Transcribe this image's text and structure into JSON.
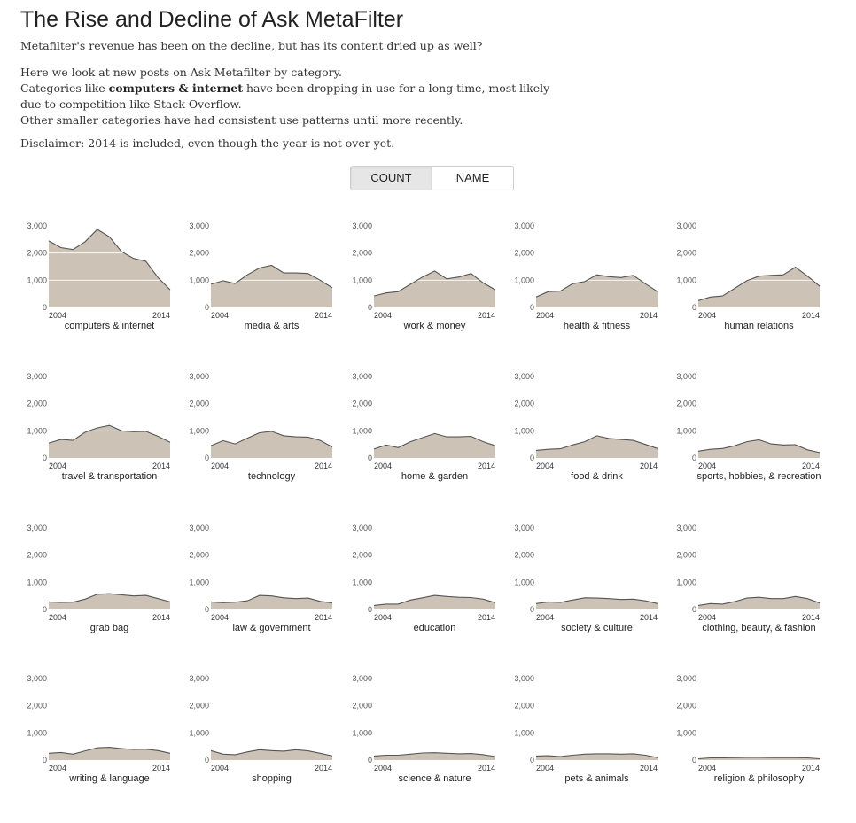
{
  "header": {
    "title": "The Rise and Decline of Ask MetaFilter",
    "subtitle": "Metafilter's revenue has been on the decline, but has its content dried up as well?"
  },
  "intro": {
    "line1": "Here we look at new posts on Ask Metafilter by category.",
    "line2_before": "Categories like ",
    "line2_bold": "computers & internet",
    "line2_after": " have been dropping in use for a long time, most likely",
    "line3": "due to competition like Stack Overflow.",
    "line4": "Other smaller categories have had consistent use patterns until more recently.",
    "disclaimer": "Disclaimer: 2014 is included, even though the year is not over yet."
  },
  "toggle": {
    "count_label": "COUNT",
    "name_label": "NAME",
    "active": "count"
  },
  "colors": {
    "area_fill": "#ccc3b6",
    "line_stroke": "#555555",
    "axis_text": "#555555",
    "gridline": "#ffffff"
  },
  "chart_data": {
    "type": "area",
    "x": [
      2004,
      2005,
      2006,
      2007,
      2008,
      2009,
      2010,
      2011,
      2012,
      2013,
      2014
    ],
    "x_tick_labels": [
      "2004",
      "2014"
    ],
    "ylim": [
      0,
      3000
    ],
    "y_ticks": [
      0,
      1000,
      2000,
      3000
    ],
    "y_tick_labels": [
      "0",
      "1,000",
      "2,000",
      "3,000"
    ],
    "series": [
      {
        "name": "computers & internet",
        "values": [
          2450,
          2200,
          2130,
          2420,
          2870,
          2600,
          2050,
          1800,
          1700,
          1100,
          650
        ]
      },
      {
        "name": "media & arts",
        "values": [
          850,
          980,
          880,
          1200,
          1450,
          1550,
          1270,
          1270,
          1250,
          1000,
          720
        ]
      },
      {
        "name": "work & money",
        "values": [
          420,
          530,
          580,
          850,
          1120,
          1340,
          1050,
          1120,
          1250,
          900,
          650
        ]
      },
      {
        "name": "health & fitness",
        "values": [
          380,
          580,
          600,
          870,
          950,
          1200,
          1130,
          1100,
          1180,
          870,
          580
        ]
      },
      {
        "name": "human relations",
        "values": [
          250,
          380,
          420,
          700,
          980,
          1150,
          1180,
          1200,
          1480,
          1150,
          780
        ]
      },
      {
        "name": "travel & transportation",
        "values": [
          550,
          680,
          650,
          950,
          1110,
          1200,
          1000,
          970,
          980,
          800,
          580
        ]
      },
      {
        "name": "technology",
        "values": [
          450,
          640,
          520,
          730,
          930,
          980,
          820,
          780,
          770,
          650,
          400
        ]
      },
      {
        "name": "home & garden",
        "values": [
          330,
          480,
          380,
          600,
          750,
          900,
          780,
          780,
          800,
          600,
          450
        ]
      },
      {
        "name": "food & drink",
        "values": [
          280,
          320,
          340,
          480,
          600,
          820,
          720,
          680,
          650,
          500,
          350
        ]
      },
      {
        "name": "sports, hobbies, & recreation",
        "values": [
          250,
          320,
          350,
          450,
          600,
          670,
          520,
          480,
          490,
          300,
          200
        ]
      },
      {
        "name": "grab bag",
        "values": [
          280,
          260,
          270,
          380,
          560,
          580,
          540,
          500,
          520,
          400,
          280
        ]
      },
      {
        "name": "law & government",
        "values": [
          280,
          250,
          270,
          320,
          520,
          500,
          430,
          400,
          420,
          300,
          240
        ]
      },
      {
        "name": "education",
        "values": [
          150,
          200,
          200,
          350,
          430,
          520,
          480,
          450,
          440,
          380,
          250
        ]
      },
      {
        "name": "society & culture",
        "values": [
          220,
          280,
          260,
          350,
          430,
          420,
          400,
          370,
          380,
          320,
          220
        ]
      },
      {
        "name": "clothing, beauty, & fashion",
        "values": [
          150,
          220,
          200,
          290,
          420,
          450,
          400,
          400,
          480,
          400,
          240
        ]
      },
      {
        "name": "writing & language",
        "values": [
          250,
          280,
          220,
          340,
          450,
          470,
          420,
          390,
          400,
          350,
          250
        ]
      },
      {
        "name": "shopping",
        "values": [
          350,
          220,
          200,
          300,
          380,
          350,
          330,
          380,
          340,
          250,
          150
        ]
      },
      {
        "name": "science & nature",
        "values": [
          150,
          180,
          180,
          220,
          260,
          270,
          250,
          230,
          240,
          200,
          130
        ]
      },
      {
        "name": "pets & animals",
        "values": [
          150,
          160,
          130,
          180,
          220,
          230,
          230,
          220,
          230,
          180,
          90
        ]
      },
      {
        "name": "religion & philosophy",
        "values": [
          50,
          80,
          80,
          90,
          100,
          100,
          90,
          90,
          90,
          80,
          50
        ]
      }
    ]
  }
}
